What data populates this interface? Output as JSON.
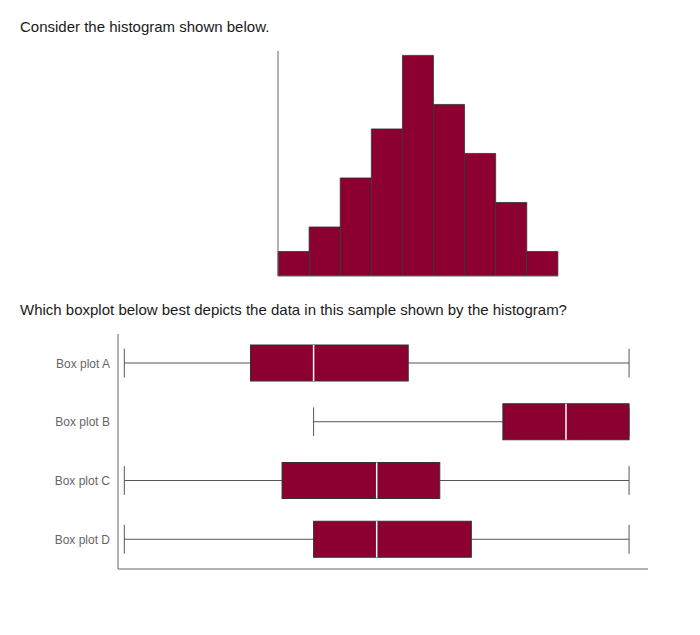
{
  "chart_data": [
    {
      "type": "bar",
      "title": "Consider the histogram shown below.",
      "categories": [
        null,
        null,
        null,
        null,
        null,
        null,
        null,
        null,
        null
      ],
      "values": [
        1,
        2,
        4,
        6,
        9,
        7,
        5,
        3,
        1
      ],
      "color": "#8B0030",
      "ylim": [
        0,
        9.18
      ],
      "tick_labels": false
    },
    {
      "type": "boxplot",
      "title": "Which boxplot below best depicts the data in this sample shown by the histogram?",
      "orientation": "horizontal",
      "categories": [
        "Box plot A",
        "Box plot B",
        "Box plot C",
        "Box plot D"
      ],
      "min": [
        1,
        4,
        1,
        1
      ],
      "q1": [
        3.0,
        7.0,
        3.5,
        4.0
      ],
      "median": [
        4.0,
        8.0,
        5.0,
        5.0
      ],
      "q3": [
        5.5,
        9.0,
        6.0,
        6.5
      ],
      "max": [
        9,
        9,
        9,
        9
      ],
      "color": "#8B0030",
      "xlim": [
        0.9,
        9.3
      ],
      "tick_labels": "y"
    }
  ]
}
